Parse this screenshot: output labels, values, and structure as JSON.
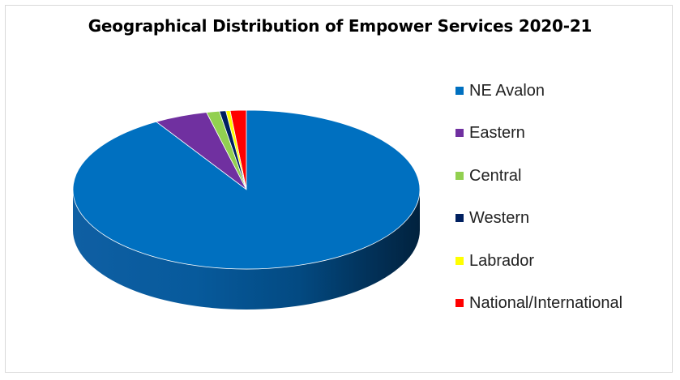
{
  "chart_data": {
    "type": "pie",
    "title": "Geographical Distribution of Empower Services 2020-21",
    "categories": [
      "NE Avalon",
      "Eastern",
      "Central",
      "Western",
      "Labrador",
      "National/International"
    ],
    "values": [
      91.3,
      5.0,
      1.2,
      0.6,
      0.4,
      1.5
    ],
    "colors": [
      "#0070C0",
      "#7030A0",
      "#92D050",
      "#002060",
      "#FFFF00",
      "#FF0000"
    ],
    "legend_position": "right",
    "style": "3d"
  }
}
